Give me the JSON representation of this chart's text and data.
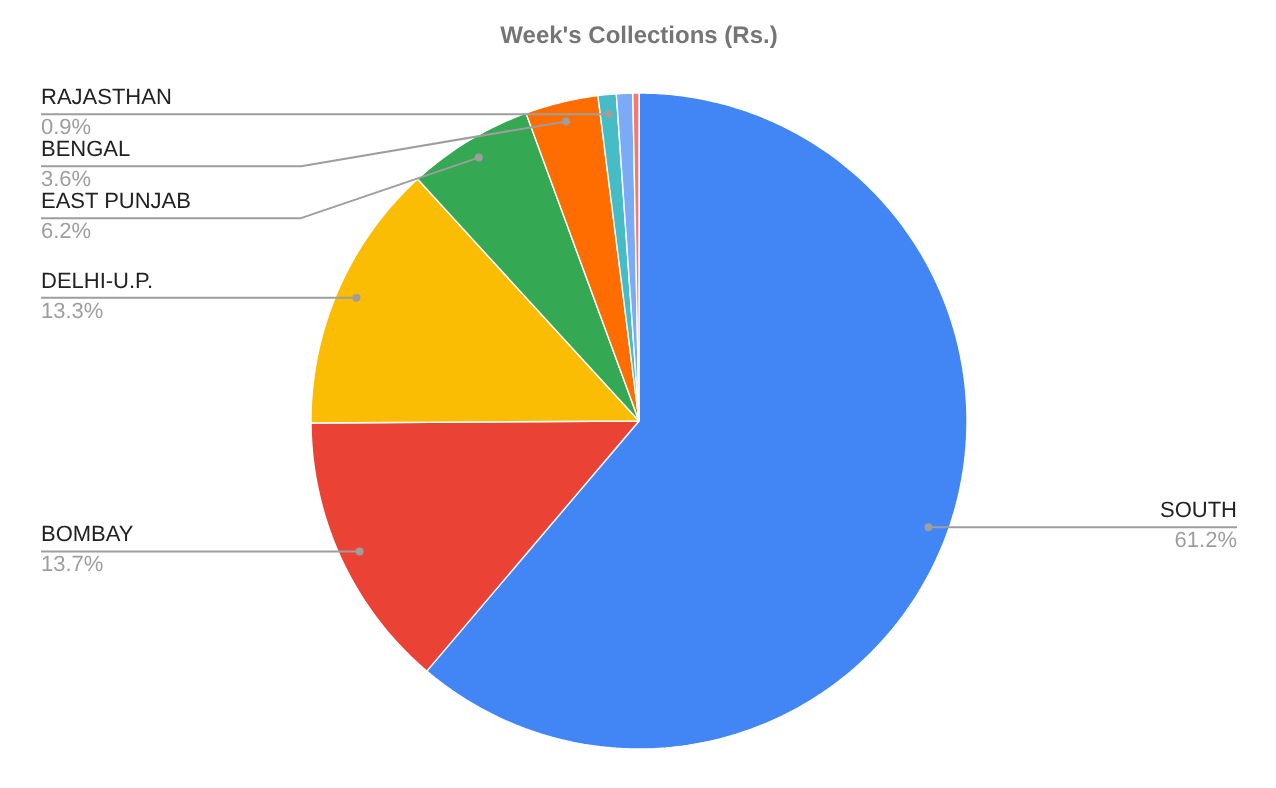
{
  "chart_data": {
    "type": "pie",
    "title": "Week's Collections (Rs.)",
    "categories": [
      "SOUTH",
      "BOMBAY",
      "DELHI-U.P.",
      "EAST PUNJAB",
      "BENGAL",
      "RAJASTHAN",
      null,
      null
    ],
    "values": [
      61.2,
      13.7,
      13.3,
      6.2,
      3.6,
      0.9,
      0.8,
      0.3
    ],
    "value_labels": [
      "61.2%",
      "13.7%",
      "13.3%",
      "6.2%",
      "3.6%",
      "0.9%",
      null,
      null
    ],
    "colors": [
      "#4285f4",
      "#ea4335",
      "#fbbc04",
      "#34a853",
      "#ff6d01",
      "#46bdc6",
      "#7baaf7",
      "#f07b72"
    ]
  }
}
